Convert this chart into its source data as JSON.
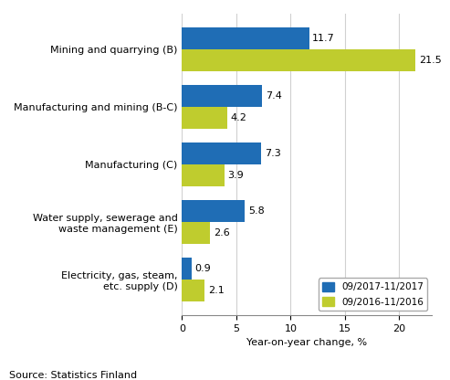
{
  "categories": [
    "Mining and quarrying (B)",
    "Manufacturing and mining (B-C)",
    "Manufacturing (C)",
    "Water supply, sewerage and\nwaste management (E)",
    "Electricity, gas, steam,\netc. supply (D)"
  ],
  "series_2017": [
    11.7,
    7.4,
    7.3,
    5.8,
    0.9
  ],
  "series_2016": [
    21.5,
    4.2,
    3.9,
    2.6,
    2.1
  ],
  "color_2017": "#1f6db5",
  "color_2016": "#bfcc2e",
  "xlabel": "Year-on-year change, %",
  "legend_2017": "09/2017-11/2017",
  "legend_2016": "09/2016-11/2016",
  "source": "Source: Statistics Finland",
  "xlim": [
    0,
    23
  ],
  "xticks": [
    0,
    5,
    10,
    15,
    20
  ],
  "bar_height": 0.38,
  "label_fontsize": 8,
  "tick_fontsize": 8,
  "source_fontsize": 8
}
